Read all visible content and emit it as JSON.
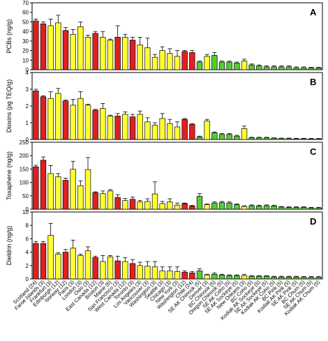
{
  "colors": {
    "red": "#e02020",
    "yellow": "#ffff33",
    "green": "#55cc33",
    "frame": "#000000"
  },
  "chart_data": {
    "type": "bar",
    "categories": [
      "Scotland (24)",
      "Faroe Islands (3)",
      "Frankfurt (3)",
      "Edinburgh (12)",
      "Norway (12)",
      "Paris (3)",
      "London (3)",
      "Oslo (3)",
      "East Canada (12)",
      "Boston (3)",
      "Maine (6)",
      "San Francisco (3)",
      "West Canada (12)",
      "Toronto (3)",
      "Los Angeles (3)",
      "Vancouver (3)",
      "Washington (3)",
      "Seattle (3)",
      "Chicago (3)",
      "New York (3)",
      "Washington (12)",
      "Chile (24)",
      "SE AK Chinook (5)",
      "Denver (3)",
      "BC Chinook (5)",
      "Oregon Chinook (5)",
      "SE AK Coho (5)",
      "SE AK Sockeye (5)",
      "New Orleans (3)",
      "BC Coho (5)",
      "Kodiak AK Sockeye (5)",
      "SE AK Sockeye (5)",
      "Kodiak AK Coho (5)",
      "BC Pink (5)",
      "Kodiak AK Pink (5)",
      "SE AK Pink (5)",
      "BC Chum (5)",
      "SE AK Chum (5)",
      "Kodiak AK Chum (5)"
    ],
    "bar_colors": [
      "red",
      "red",
      "yellow",
      "yellow",
      "red",
      "yellow",
      "yellow",
      "yellow",
      "red",
      "yellow",
      "yellow",
      "red",
      "yellow",
      "red",
      "yellow",
      "yellow",
      "yellow",
      "yellow",
      "yellow",
      "yellow",
      "red",
      "red",
      "green",
      "yellow",
      "green",
      "green",
      "green",
      "green",
      "yellow",
      "green",
      "green",
      "green",
      "green",
      "green",
      "green",
      "green",
      "green",
      "green",
      "green"
    ],
    "panels": [
      {
        "letter": "A",
        "ylabel": "PCBs (ng/g)",
        "ylim": [
          0,
          70
        ],
        "yticks": [
          0,
          10,
          20,
          30,
          40,
          50,
          60,
          70
        ],
        "values": [
          51,
          48,
          46,
          49,
          41,
          37,
          45,
          34,
          38,
          34,
          31,
          34,
          34,
          31,
          26,
          23,
          13,
          20,
          17,
          14,
          19,
          18,
          8,
          14,
          15,
          8,
          8,
          7,
          9,
          5,
          4,
          3,
          3,
          3,
          3,
          2,
          2,
          2,
          2
        ],
        "errors": [
          2,
          2,
          7,
          8,
          3,
          5,
          5,
          2,
          2,
          6,
          1,
          12,
          3,
          3,
          8,
          10,
          3,
          4,
          5,
          6,
          1,
          2,
          1,
          2,
          3,
          1,
          1,
          1,
          2,
          1,
          1,
          1,
          1,
          1,
          1,
          1,
          1,
          0.5,
          0.5
        ]
      },
      {
        "letter": "B",
        "ylabel": "Dioxins (pg TEQ/g)",
        "ylim": [
          0,
          4
        ],
        "yticks": [
          0,
          1,
          2,
          3,
          4
        ],
        "values": [
          2.9,
          2.55,
          2.45,
          2.75,
          2.3,
          2.05,
          2.45,
          2.05,
          1.75,
          1.85,
          1.4,
          1.4,
          1.5,
          1.35,
          1.5,
          1.05,
          0.85,
          1.25,
          0.95,
          0.75,
          1.2,
          0.9,
          0.15,
          1.1,
          0.4,
          0.3,
          0.3,
          0.2,
          0.65,
          0.1,
          0.1,
          0.1,
          0.08,
          0.06,
          0.06,
          0.05,
          0.05,
          0.04,
          0.04
        ],
        "errors": [
          0.1,
          0.05,
          0.4,
          0.3,
          0.05,
          0.35,
          0.4,
          0.05,
          0.05,
          0.3,
          0.05,
          0.15,
          0.15,
          0.15,
          0.2,
          0.25,
          0.15,
          0.3,
          0.25,
          0.3,
          0.05,
          0.05,
          0.05,
          0.1,
          0.05,
          0.05,
          0.05,
          0.05,
          0.15,
          0.03,
          0.03,
          0.03,
          0.02,
          0.02,
          0.02,
          0.02,
          0.02,
          0.02,
          0.02
        ]
      },
      {
        "letter": "C",
        "ylabel": "Toxaphene (ng/g)",
        "ylim": [
          0,
          250
        ],
        "yticks": [
          0,
          50,
          100,
          150,
          200,
          250
        ],
        "values": [
          158,
          183,
          133,
          121,
          108,
          149,
          88,
          148,
          62,
          58,
          68,
          44,
          32,
          37,
          27,
          29,
          57,
          21,
          27,
          15,
          21,
          12,
          48,
          17,
          23,
          25,
          23,
          17,
          10,
          13,
          12,
          13,
          12,
          8,
          7,
          7,
          7,
          5,
          5
        ],
        "errors": [
          6,
          12,
          30,
          12,
          8,
          30,
          18,
          45,
          3,
          10,
          5,
          10,
          8,
          8,
          6,
          10,
          45,
          8,
          12,
          8,
          2,
          2,
          10,
          3,
          4,
          4,
          4,
          3,
          3,
          3,
          3,
          3,
          3,
          2,
          2,
          2,
          2,
          2,
          2
        ]
      },
      {
        "letter": "D",
        "ylabel": "Dieldrin (ng/g)",
        "ylim": [
          0,
          10
        ],
        "yticks": [
          0,
          2,
          4,
          6,
          8,
          10
        ],
        "values": [
          5.3,
          5.3,
          6.5,
          3.7,
          4.0,
          4.6,
          3.5,
          4.2,
          3.2,
          2.6,
          3.3,
          2.7,
          2.6,
          2.3,
          2.0,
          1.9,
          1.8,
          1.2,
          1.2,
          1.1,
          1.0,
          0.9,
          1.2,
          0.6,
          0.7,
          0.6,
          0.5,
          0.5,
          0.5,
          0.4,
          0.4,
          0.4,
          0.3,
          0.3,
          0.3,
          0.3,
          0.25,
          0.25,
          0.25
        ],
        "errors": [
          0.3,
          0.3,
          1.8,
          0.2,
          0.4,
          1.2,
          0.2,
          0.6,
          0.2,
          0.9,
          0.2,
          0.7,
          0.6,
          0.6,
          0.5,
          0.7,
          0.8,
          0.6,
          0.6,
          0.7,
          0.2,
          0.2,
          0.3,
          0.1,
          0.2,
          0.1,
          0.1,
          0.1,
          0.2,
          0.1,
          0.1,
          0.1,
          0.1,
          0.1,
          0.1,
          0.1,
          0.1,
          0.1,
          0.1
        ]
      }
    ]
  }
}
